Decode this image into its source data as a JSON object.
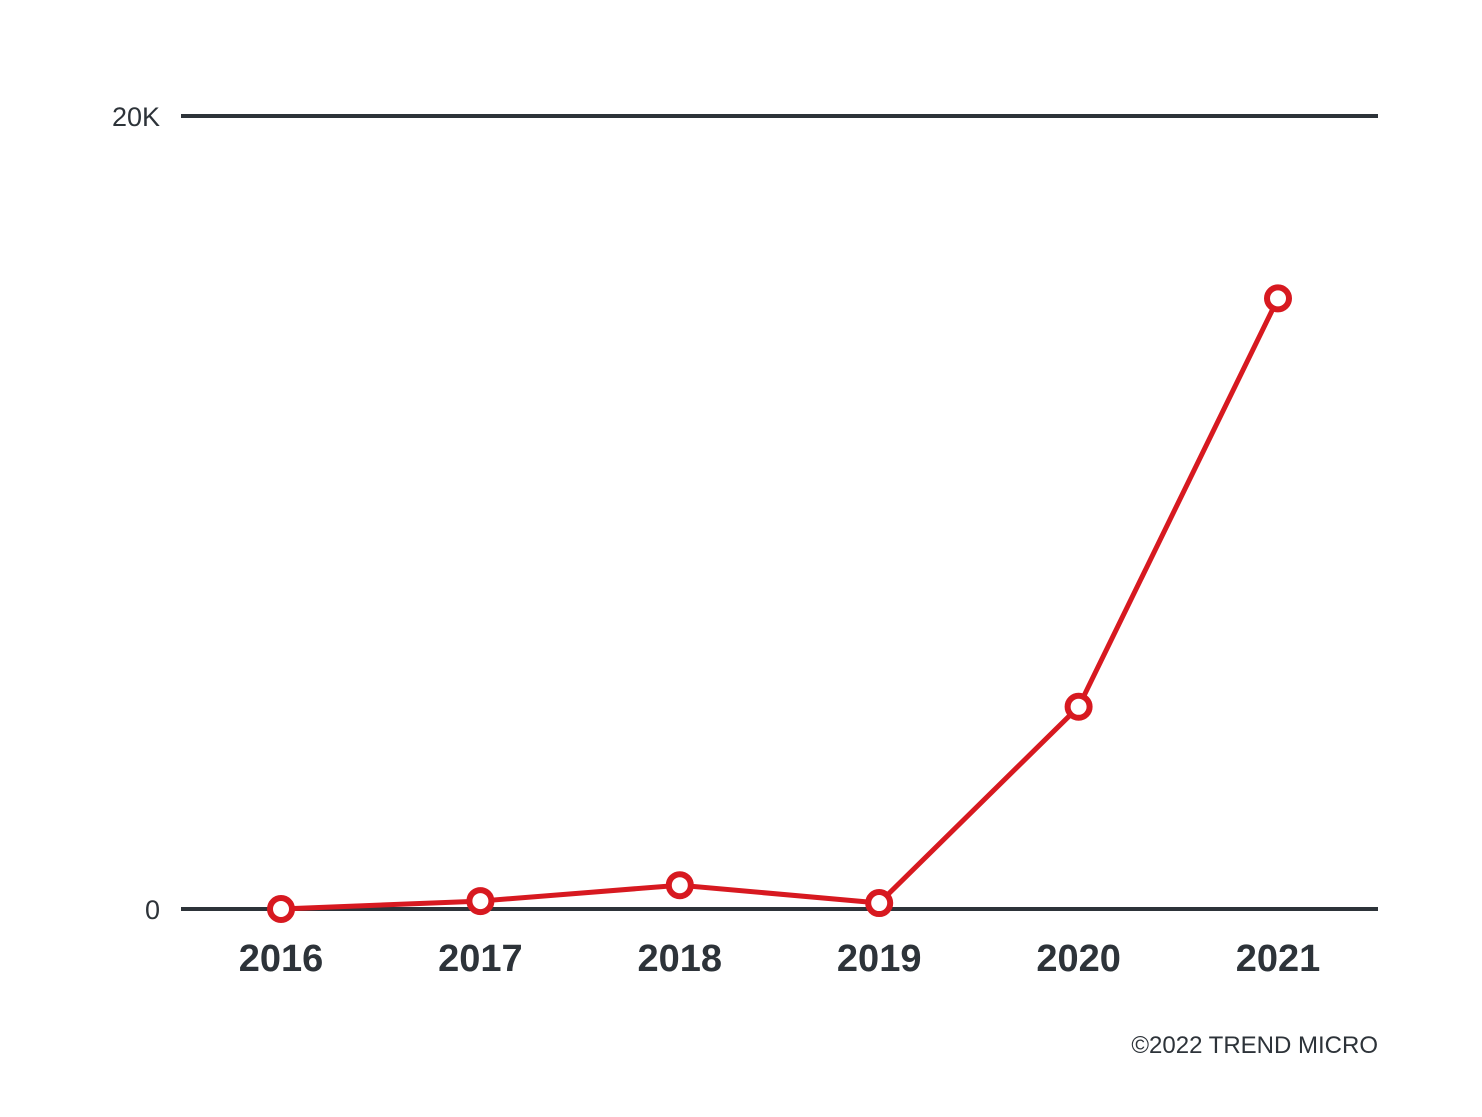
{
  "chart_data": {
    "type": "line",
    "title": "",
    "xlabel": "",
    "ylabel": "",
    "categories": [
      "2016",
      "2017",
      "2018",
      "2019",
      "2020",
      "2021"
    ],
    "series": [
      {
        "values": [
          0,
          200,
          600,
          150,
          5100,
          15400
        ],
        "color": "#d71920"
      }
    ],
    "ylim": [
      0,
      20000
    ],
    "y_ticks": [
      {
        "value": 0,
        "label": "0"
      },
      {
        "value": 20000,
        "label": "20K"
      }
    ],
    "grid": "horizontal at labeled ticks",
    "legend": "none",
    "marker": "hollow circle"
  },
  "footer": {
    "credit": "©2022 TREND MICRO"
  }
}
